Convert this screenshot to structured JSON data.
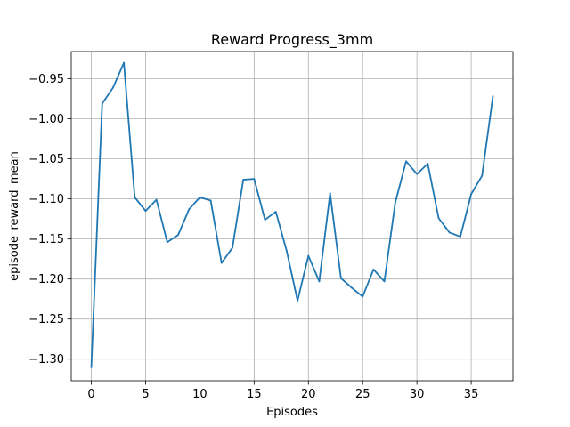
{
  "chart_data": {
    "type": "line",
    "title": "Reward Progress_3mm",
    "xlabel": "Episodes",
    "ylabel": "episode_reward_mean",
    "xlim": [
      -1.85,
      38.85
    ],
    "ylim": [
      -1.327,
      -0.916
    ],
    "grid": true,
    "x_ticks": [
      0,
      5,
      10,
      15,
      20,
      25,
      30,
      35
    ],
    "x_tick_labels": [
      "0",
      "5",
      "10",
      "15",
      "20",
      "25",
      "30",
      "35"
    ],
    "y_ticks": [
      -1.3,
      -1.25,
      -1.2,
      -1.15,
      -1.1,
      -1.05,
      -1.0,
      -0.95
    ],
    "y_tick_labels": [
      "−1.30",
      "−1.25",
      "−1.20",
      "−1.15",
      "−1.10",
      "−1.05",
      "−1.00",
      "−0.95"
    ],
    "series": [
      {
        "color": "#1f77b4",
        "x": [
          0,
          1,
          2,
          3,
          4,
          5,
          6,
          7,
          8,
          9,
          10,
          11,
          12,
          13,
          14,
          15,
          16,
          17,
          18,
          19,
          20,
          21,
          22,
          23,
          24,
          25,
          26,
          27,
          28,
          29,
          30,
          31,
          32,
          33,
          34,
          35,
          36,
          37
        ],
        "y": [
          -1.31,
          -0.981,
          -0.961,
          -0.93,
          -1.098,
          -1.115,
          -1.101,
          -1.154,
          -1.145,
          -1.113,
          -1.098,
          -1.102,
          -1.18,
          -1.161,
          -1.076,
          -1.075,
          -1.126,
          -1.116,
          -1.165,
          -1.227,
          -1.171,
          -1.203,
          -1.093,
          -1.199,
          -1.211,
          -1.222,
          -1.188,
          -1.203,
          -1.105,
          -1.053,
          -1.069,
          -1.056,
          -1.124,
          -1.142,
          -1.147,
          -1.094,
          -1.071,
          -0.972
        ]
      }
    ]
  }
}
